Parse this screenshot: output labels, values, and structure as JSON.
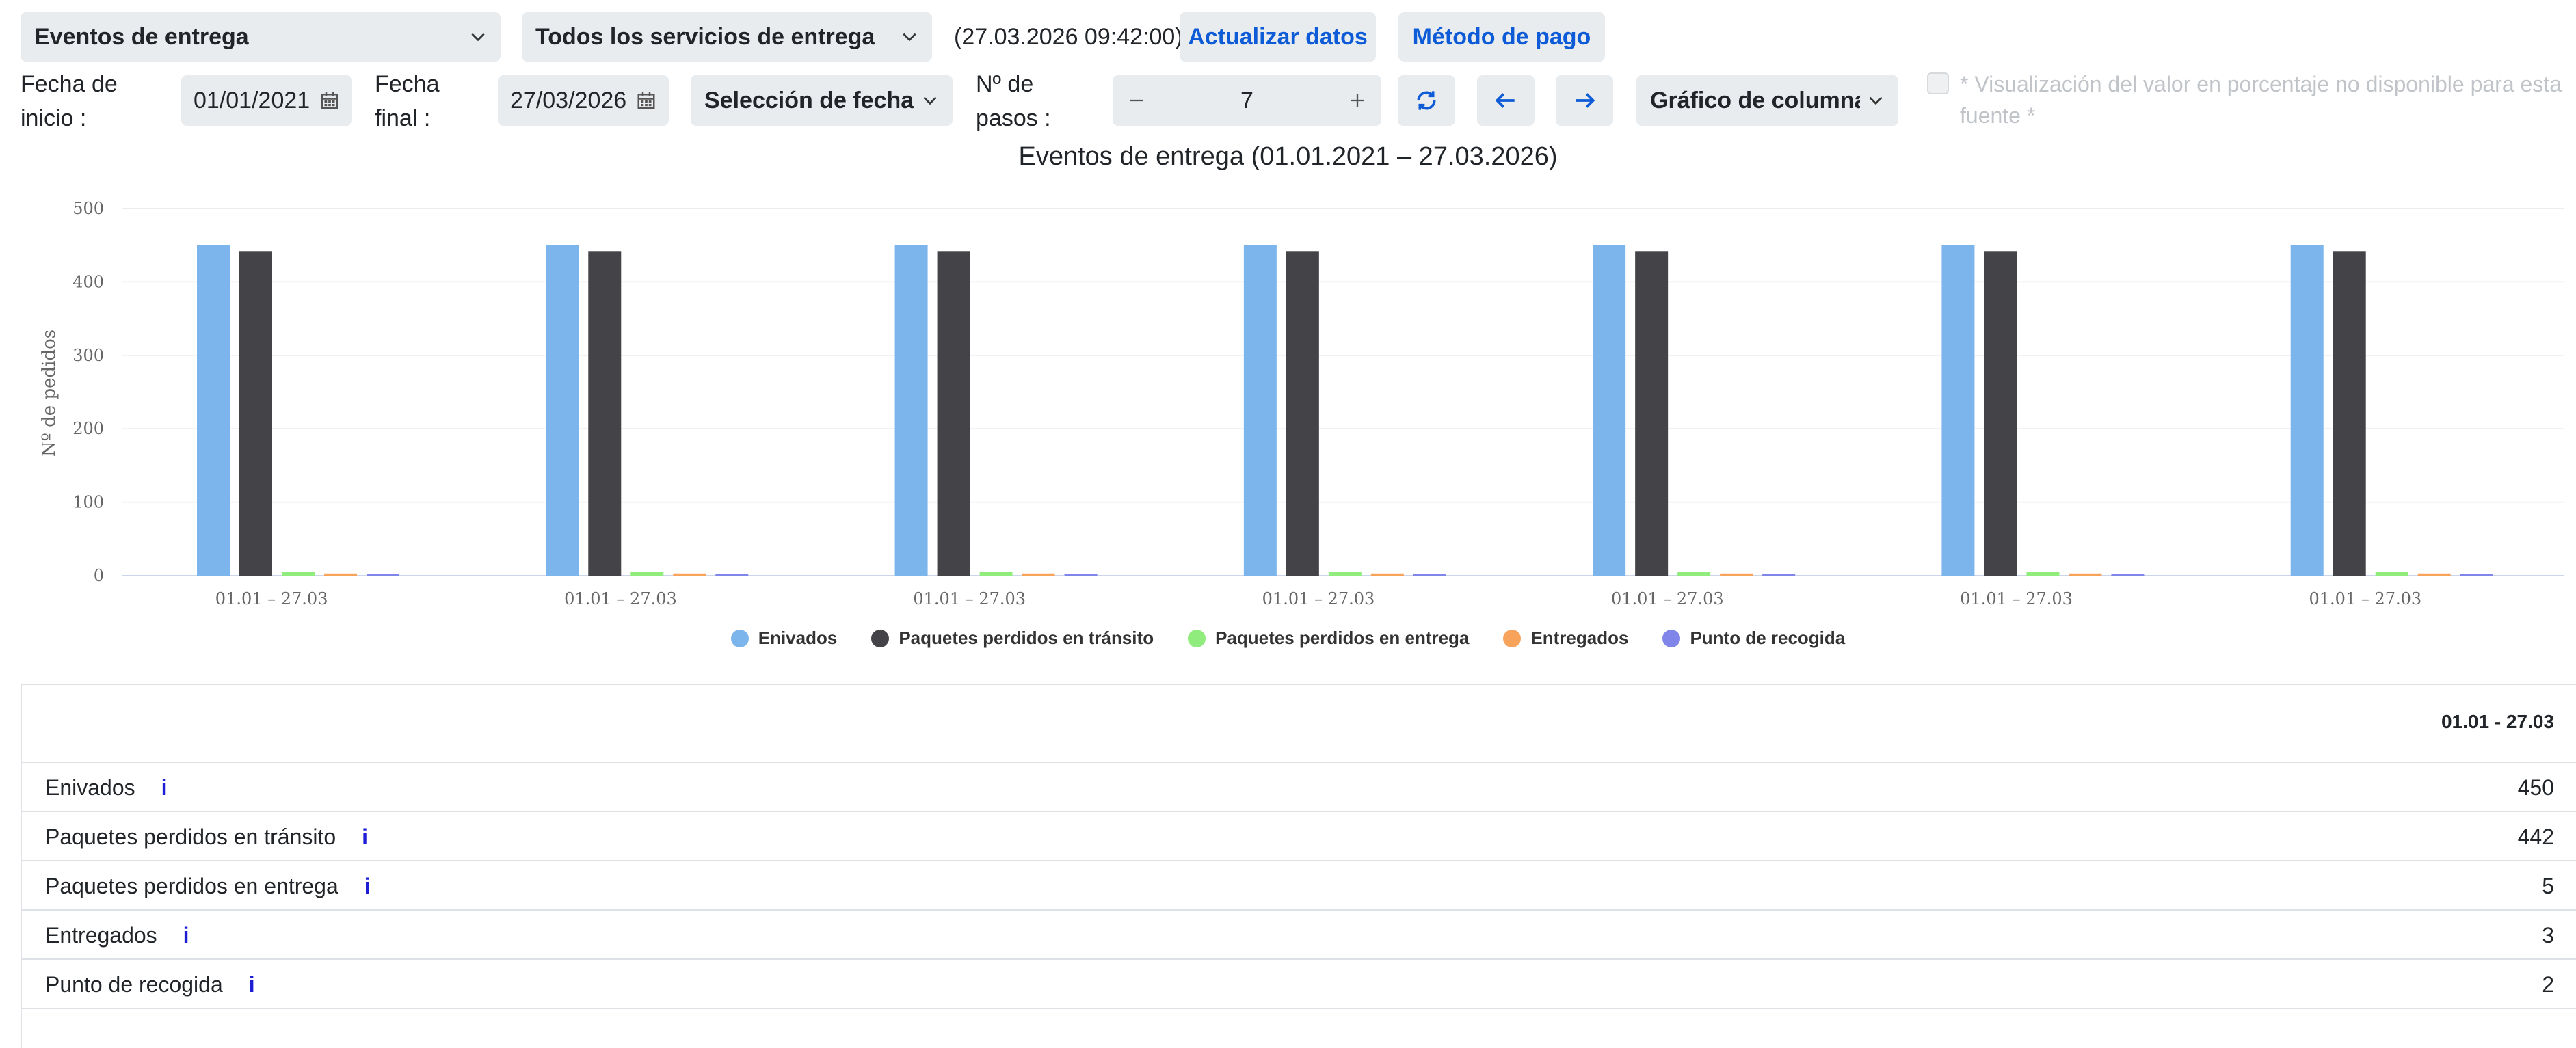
{
  "toolbar": {
    "report_select": "Eventos de entrega",
    "service_select": "Todos los servicios de entrega",
    "timestamp": "(27.03.2026 09:42:00)",
    "refresh_button": "Actualizar datos",
    "payment_button": "Método de pago"
  },
  "filters": {
    "start_label": "Fecha de inicio :",
    "start_value": "01/01/2021",
    "end_label": "Fecha final :",
    "end_value": "27/03/2026",
    "date_selection": "Selección de fecha de",
    "steps_label": "Nº de pasos :",
    "steps_value": "7",
    "chart_type": "Gráfico de columnas",
    "percent_note": "* Visualización del valor en porcentaje no disponible para esta fuente *"
  },
  "chart_data": {
    "type": "bar",
    "title": "Eventos de entrega (01.01.2021 – 27.03.2026)",
    "ylabel": "Nº de pedidos",
    "xlabel": "",
    "ylim": [
      0,
      500
    ],
    "yticks": [
      "0",
      "100",
      "200",
      "300",
      "400",
      "500"
    ],
    "grid": true,
    "legend_position": "bottom",
    "categories": [
      "01.01 – 27.03",
      "01.01 – 27.03",
      "01.01 – 27.03",
      "01.01 – 27.03",
      "01.01 – 27.03",
      "01.01 – 27.03",
      "01.01 – 27.03"
    ],
    "series": [
      {
        "name": "Enivados",
        "color": "#7cb5ec",
        "values": [
          450,
          450,
          450,
          450,
          450,
          450,
          450
        ]
      },
      {
        "name": "Paquetes perdidos en tránsito",
        "color": "#434348",
        "values": [
          442,
          442,
          442,
          442,
          442,
          442,
          442
        ]
      },
      {
        "name": "Paquetes perdidos en entrega",
        "color": "#90ed7d",
        "values": [
          5,
          5,
          5,
          5,
          5,
          5,
          5
        ]
      },
      {
        "name": "Entregados",
        "color": "#f7a35c",
        "values": [
          3,
          3,
          3,
          3,
          3,
          3,
          3
        ]
      },
      {
        "name": "Punto de recogida",
        "color": "#8085e9",
        "values": [
          2,
          2,
          2,
          2,
          2,
          2,
          2
        ]
      }
    ]
  },
  "table": {
    "column_header": "01.01 - 27.03",
    "rows": [
      {
        "label": "Enivados",
        "value": "450"
      },
      {
        "label": "Paquetes perdidos en tránsito",
        "value": "442"
      },
      {
        "label": "Paquetes perdidos en entrega",
        "value": "5"
      },
      {
        "label": "Entregados",
        "value": "3"
      },
      {
        "label": "Punto de recogida",
        "value": "2"
      }
    ],
    "info_glyph": "i"
  },
  "icons": {
    "chevron": "chevron-down-icon",
    "calendar": "calendar-icon",
    "refresh": "refresh-icon",
    "prev": "arrow-left-icon",
    "next": "arrow-right-icon",
    "minus": "minus-icon",
    "plus": "plus-icon"
  }
}
